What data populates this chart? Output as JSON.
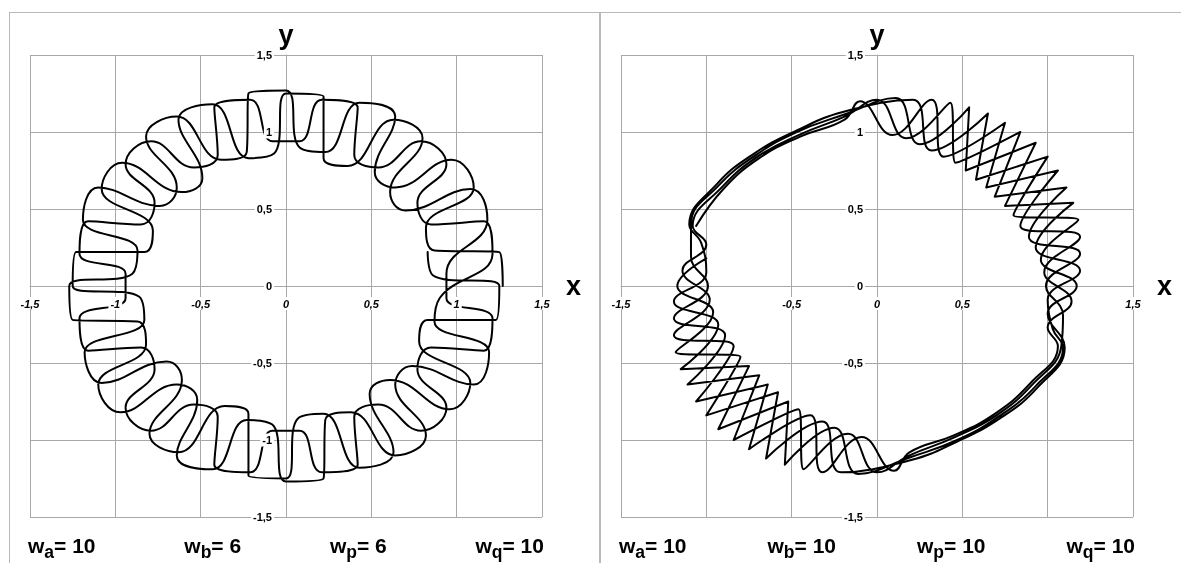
{
  "chart_data": [
    {
      "type": "line",
      "xlabel": "x",
      "ylabel": "y",
      "xlim": [
        -1.5,
        1.5
      ],
      "ylim": [
        -1.5,
        1.5
      ],
      "xticks": [
        {
          "value": -1.5,
          "label": "-1,5"
        },
        {
          "value": -1,
          "label": "-1"
        },
        {
          "value": -0.5,
          "label": "-0,5"
        },
        {
          "value": 0,
          "label": "0"
        },
        {
          "value": 0.5,
          "label": "0,5"
        },
        {
          "value": 1,
          "label": "1"
        },
        {
          "value": 1.5,
          "label": "1,5"
        }
      ],
      "yticks": [
        {
          "value": -1.5,
          "label": "-1,5"
        },
        {
          "value": -1,
          "label": "-1"
        },
        {
          "value": -0.5,
          "label": "-0,5"
        },
        {
          "value": 0,
          "label": "0"
        },
        {
          "value": 0.5,
          "label": "0,5"
        },
        {
          "value": 1,
          "label": "1"
        },
        {
          "value": 1.5,
          "label": "1,5"
        }
      ],
      "grid": true,
      "annotations": [
        "w$_{a}$= 10",
        "w$_{b}$= 6",
        "w$_{p}$= 6",
        "w$_{q}$= 10"
      ],
      "series": [
        {
          "color": "#000000",
          "x": [
            1.27,
            1.25,
            0.87,
            0.82,
            1.1,
            0.97,
            0.64,
            0.52,
            0.64,
            0.43,
            0.23,
            0.08,
            0,
            -0.22,
            -0.23,
            -0.38,
            -0.64,
            -0.82,
            -0.64,
            -0.74,
            -1.1,
            -1.19,
            -0.87,
            -0.9,
            -1.27,
            -1.25,
            -0.87,
            -0.82,
            -1.1,
            -0.97,
            -0.64,
            -0.52,
            -0.64,
            -0.43,
            -0.23,
            -0.08,
            0,
            0.22,
            0.23,
            0.38,
            0.64,
            0.82,
            0.64,
            0.74,
            1.1,
            1.19,
            0.87,
            0.9,
            1.21,
            1.16,
            0.85,
            0.77,
            0.94,
            0.79,
            0.54,
            0.4,
            0.42,
            0.21,
            0.08,
            -0.08,
            -0.21,
            -0.42,
            -0.4,
            -0.54,
            -0.79,
            -0.94,
            -0.77,
            -0.85,
            -1.16,
            -1.21,
            -0.94,
            -0.94,
            -1.21,
            -1.16,
            -0.85,
            -0.77,
            -0.94,
            -0.79,
            -0.54,
            -0.4,
            -0.42,
            -0.21,
            -0.08,
            0.08,
            0.21,
            0.42,
            0.4,
            0.54,
            0.79,
            0.94,
            0.77,
            0.85,
            1.16,
            1.21,
            0.94,
            0.94,
            1.18,
            1.08,
            0.7,
            0.61,
            0.8,
            0.63,
            0.36,
            0.22,
            0.22,
            0,
            -0.07,
            -0.22,
            -0.43,
            -0.63,
            -0.49,
            -0.61,
            -0.96,
            -1.08,
            -0.78,
            -0.83,
            -1.23,
            -1.25,
            -0.86,
            -0.83,
            -1.18,
            -1.08,
            -0.7,
            -0.61,
            -0.8,
            -0.63,
            -0.36,
            -0.22,
            -0.22,
            0,
            0.07,
            0.22,
            0.43,
            0.63,
            0.49,
            0.61,
            0.96,
            1.08,
            0.78,
            0.83,
            1.23,
            1.25,
            0.86,
            0.83
          ],
          "values": [
            0,
            0.22,
            0.23,
            0.38,
            0.64,
            0.82,
            0.64,
            0.74,
            1.1,
            1.19,
            0.87,
            0.9,
            1.27,
            1.25,
            0.87,
            0.82,
            1.1,
            0.97,
            0.64,
            0.52,
            0.64,
            0.43,
            0.23,
            0.08,
            0,
            -0.22,
            -0.23,
            -0.38,
            -0.64,
            -0.82,
            -0.64,
            -0.74,
            -1.1,
            -1.19,
            -0.87,
            -0.9,
            -1.27,
            -1.25,
            -0.87,
            -0.82,
            -1.1,
            -0.97,
            -0.64,
            -0.52,
            -0.64,
            -0.43,
            -0.23,
            -0.08,
            0.21,
            0.42,
            0.4,
            0.54,
            0.79,
            0.94,
            0.77,
            0.85,
            1.16,
            1.21,
            0.94,
            0.94,
            1.21,
            1.16,
            0.85,
            0.77,
            0.94,
            0.79,
            0.54,
            0.4,
            0.42,
            0.21,
            0.08,
            -0.08,
            -0.21,
            -0.42,
            -0.4,
            -0.54,
            -0.79,
            -0.94,
            -0.77,
            -0.85,
            -1.16,
            -1.21,
            -0.94,
            -0.94,
            -1.21,
            -1.16,
            -0.85,
            -0.77,
            -0.94,
            -0.79,
            -0.54,
            -0.4,
            -0.42,
            -0.21,
            -0.08,
            0.08,
            0.43,
            0.63,
            0.49,
            0.61,
            0.96,
            1.08,
            0.78,
            0.83,
            1.23,
            1.25,
            0.86,
            0.83,
            1.18,
            1.08,
            0.7,
            0.61,
            0.8,
            0.63,
            0.36,
            0.22,
            0.22,
            0,
            -0.07,
            -0.22,
            -0.43,
            -0.63,
            -0.49,
            -0.61,
            -0.96,
            -1.08,
            -0.78,
            -0.83,
            -1.23,
            -1.25,
            -0.86,
            -0.83,
            -1.18,
            -1.08,
            -0.7,
            -0.61,
            -0.8,
            -0.63,
            -0.36,
            -0.22,
            -0.22,
            0,
            0.07,
            0.22
          ]
        }
      ]
    },
    {
      "type": "line",
      "xlabel": "x",
      "ylabel": "y",
      "xlim": [
        -1.5,
        1.5
      ],
      "ylim": [
        -1.5,
        1.5
      ],
      "xticks": [
        {
          "value": -1.5,
          "label": "-1,5"
        },
        {
          "value": -1,
          "label": null
        },
        {
          "value": -0.5,
          "label": "-0,5"
        },
        {
          "value": 0,
          "label": "0"
        },
        {
          "value": 0.5,
          "label": "0,5"
        },
        {
          "value": 1,
          "label": null
        },
        {
          "value": 1.5,
          "label": "1,5"
        }
      ],
      "yticks": [
        {
          "value": -1.5,
          "label": "-1,5"
        },
        {
          "value": -1,
          "label": null
        },
        {
          "value": -0.5,
          "label": "-0,5"
        },
        {
          "value": 0,
          "label": "0"
        },
        {
          "value": 0.5,
          "label": "0,5"
        },
        {
          "value": 1,
          "label": "1"
        },
        {
          "value": 1.5,
          "label": "1,5"
        }
      ],
      "grid": true,
      "annotations": [
        "w$_{a}$= 10",
        "w$_{b}$= 10",
        "w$_{p}$= 10",
        "w$_{q}$= 10"
      ],
      "series": [
        {
          "color": "#000000",
          "x": [
            -1.06,
            -0.9,
            -0.69,
            -0.45,
            -0.19,
            -0.1,
            0.09,
            0.32,
            0.39,
            0.75,
            0.64,
            1.06,
            0.84,
            1.19,
            0.98,
            1.14,
            1.0,
            1.06,
            0.9,
            0.69,
            0.45,
            0.19,
            0.1,
            -0.09,
            -0.32,
            -0.39,
            -0.75,
            -0.64,
            -1.06,
            -0.84,
            -1.19,
            -0.98,
            -1.14,
            -1.0,
            -1.08,
            -0.91,
            -0.7,
            -0.46,
            -0.19,
            0.0,
            0.17,
            0.43,
            0.46,
            0.84,
            0.69,
            1.11,
            0.89,
            1.19,
            0.99,
            1.09,
            1.08,
            0.91,
            0.7,
            0.46,
            0.19,
            0.0,
            -0.17,
            -0.43,
            -0.46,
            -0.84,
            -0.69,
            -1.11,
            -0.89,
            -1.19,
            -0.99,
            -1.09,
            -1.09,
            -0.93,
            -0.71,
            -0.47,
            -0.2,
            0.11,
            0.25,
            0.54,
            0.52,
            0.93,
            0.75,
            1.15,
            0.93,
            1.19,
            1.0,
            1.03,
            1.09,
            0.93,
            0.71,
            0.47,
            0.2,
            -0.11,
            -0.25,
            -0.54,
            -0.52,
            -0.93,
            -0.75,
            -1.15,
            -0.93,
            -1.19,
            -1.0,
            -1.03,
            -1.1,
            -0.94,
            -0.72,
            -0.47,
            -0.2,
            0.21,
            0.32,
            0.65,
            0.58,
            1.0,
            0.8,
            1.18,
            0.96,
            1.17,
            1.0,
            1.1,
            0.94,
            0.72,
            0.47,
            0.2,
            -0.21,
            -0.32,
            -0.65,
            -0.58,
            -1.0,
            -0.8,
            -1.18,
            -0.96,
            -1.17,
            -1.0
          ],
          "values": [
            0.39,
            0.63,
            0.83,
            0.97,
            1.08,
            1.2,
            0.98,
            1.21,
            0.84,
            1.06,
            0.64,
            0.75,
            0.39,
            0.32,
            0.09,
            -0.1,
            -0.27,
            -0.39,
            -0.63,
            -0.83,
            -0.97,
            -1.08,
            -1.2,
            -0.98,
            -1.21,
            -0.84,
            -1.06,
            -0.64,
            -0.75,
            -0.39,
            -0.32,
            -0.09,
            0.1,
            0.27,
            0.39,
            0.64,
            0.84,
            0.98,
            1.1,
            1.21,
            0.96,
            1.19,
            0.8,
            1.0,
            0.58,
            0.64,
            0.32,
            0.21,
            0.0,
            -0.19,
            -0.39,
            -0.64,
            -0.84,
            -0.98,
            -1.1,
            -1.21,
            -0.96,
            -1.19,
            -0.8,
            -1.0,
            -0.58,
            -0.64,
            -0.32,
            -0.21,
            0.0,
            0.19,
            0.4,
            0.65,
            0.85,
            1.0,
            1.11,
            1.22,
            0.92,
            1.16,
            0.75,
            0.93,
            0.52,
            0.54,
            0.25,
            0.1,
            -0.09,
            -0.28,
            -0.4,
            -0.65,
            -0.85,
            -1.0,
            -1.11,
            -1.22,
            -0.92,
            -1.16,
            -0.75,
            -0.93,
            -0.52,
            -0.54,
            -0.25,
            -0.1,
            0.09,
            0.28,
            0.4,
            0.66,
            0.86,
            1.01,
            1.13,
            1.21,
            0.88,
            1.12,
            0.69,
            0.84,
            0.46,
            0.43,
            0.17,
            0.0,
            -0.18,
            -0.4,
            -0.66,
            -0.86,
            -1.01,
            -1.13,
            -1.21,
            -0.88,
            -1.12,
            -0.69,
            -0.84,
            -0.46,
            -0.43,
            -0.17,
            0.0,
            0.18
          ]
        }
      ]
    }
  ]
}
